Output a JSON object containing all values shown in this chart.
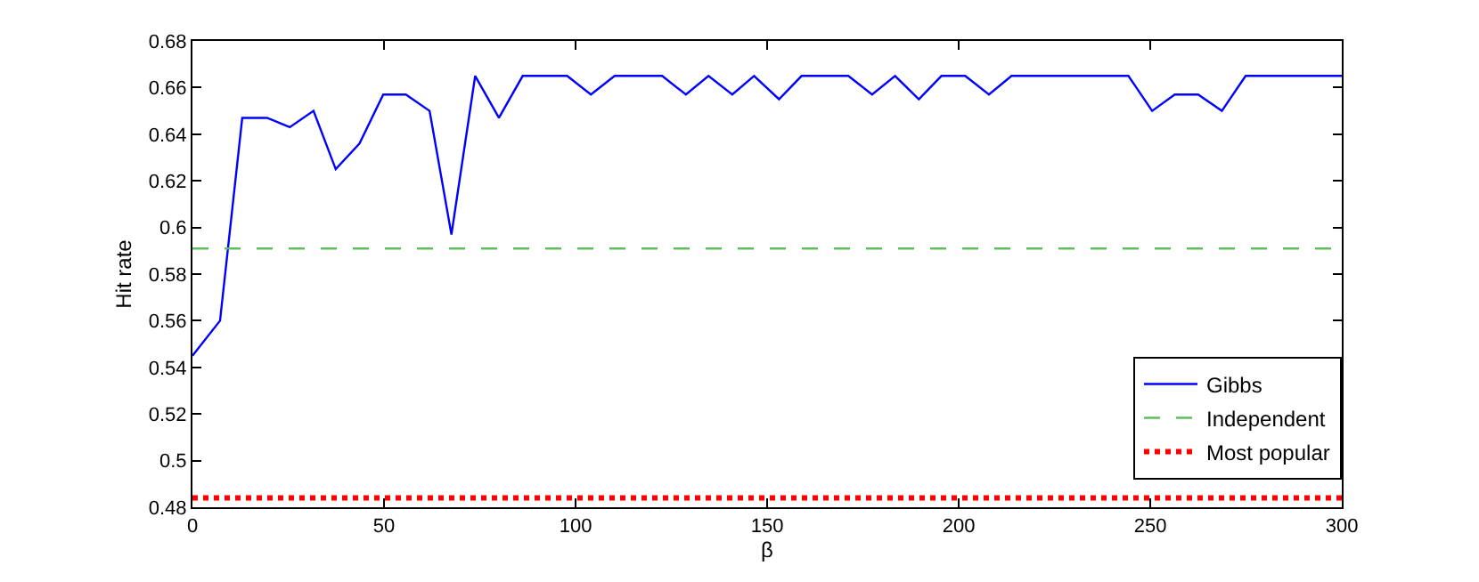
{
  "chart_data": {
    "type": "line",
    "xlabel": "β",
    "ylabel": "Hit rate",
    "xlim": [
      0,
      300
    ],
    "ylim": [
      0.48,
      0.68
    ],
    "xticks": [
      0,
      50,
      100,
      150,
      200,
      250,
      300
    ],
    "yticks": [
      0.48,
      0.5,
      0.52,
      0.54,
      0.56,
      0.58,
      0.6,
      0.62,
      0.64,
      0.66,
      0.68
    ],
    "legend": "bottom right",
    "marker": "none",
    "series": [
      {
        "name": "Gibbs",
        "color": "#0000ff",
        "line_style": "solid",
        "x": [
          0,
          7.2,
          13.0,
          19.5,
          25.4,
          31.6,
          37.4,
          43.6,
          49.8,
          55.7,
          61.9,
          67.6,
          73.8,
          80.0,
          86.2,
          97.8,
          104.0,
          110.2,
          122.6,
          128.8,
          134.7,
          140.9,
          146.6,
          153.1,
          159.0,
          171.2,
          177.4,
          183.4,
          189.6,
          195.5,
          201.7,
          207.9,
          213.8,
          244.3,
          250.5,
          256.4,
          262.5,
          268.7,
          274.9,
          300
        ],
        "values": [
          0.545,
          0.56,
          0.647,
          0.647,
          0.643,
          0.65,
          0.625,
          0.636,
          0.657,
          0.657,
          0.65,
          0.597,
          0.665,
          0.647,
          0.665,
          0.665,
          0.657,
          0.665,
          0.665,
          0.657,
          0.665,
          0.657,
          0.665,
          0.655,
          0.665,
          0.665,
          0.657,
          0.665,
          0.655,
          0.665,
          0.665,
          0.657,
          0.665,
          0.665,
          0.65,
          0.657,
          0.657,
          0.65,
          0.665,
          0.665
        ]
      },
      {
        "name": "Independent",
        "color": "#5fbf5f",
        "line_style": "dashed",
        "x": [
          0,
          300
        ],
        "values": [
          0.591,
          0.591
        ]
      },
      {
        "name": "Most popular",
        "color": "#ff0000",
        "line_style": "dotted",
        "x": [
          0,
          300
        ],
        "values": [
          0.484,
          0.484
        ]
      }
    ]
  }
}
